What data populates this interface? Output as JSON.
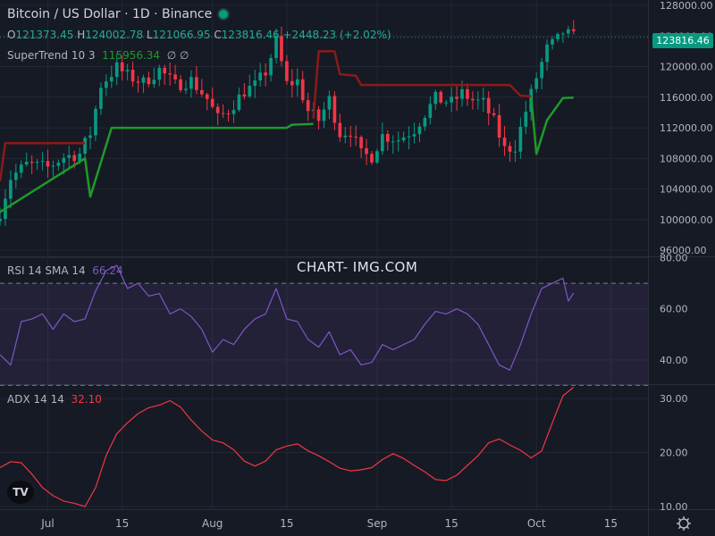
{
  "header": {
    "title": "Bitcoin / US Dollar · 1D · Binance",
    "ohlc": {
      "o_label": "O",
      "o": "121373.45",
      "h_label": "H",
      "h": "124002.78",
      "l_label": "L",
      "l": "121066.95",
      "c_label": "C",
      "c": "123816.46",
      "change": "+2448.23 (+2.02%)"
    }
  },
  "indicators": {
    "supertrend": {
      "label": "SuperTrend 10 3",
      "value": "115956.34",
      "extra": "∅  ∅"
    },
    "rsi": {
      "label": "RSI 14 SMA 14",
      "value": "66.24"
    },
    "adx": {
      "label": "ADX 14 14",
      "value": "32.10"
    }
  },
  "watermark": "CHART- IMG.COM",
  "price_tag": "123816.46",
  "logo_text": "TV",
  "colors": {
    "background": "#161a25",
    "up": "#089981",
    "down": "#f23645",
    "supertrend_up": "#1e9b2b",
    "supertrend_down": "#8b1a1a",
    "rsi": "#7e57c2",
    "adx": "#f23645"
  },
  "chart_data": [
    {
      "type": "candlestick",
      "title": "Bitcoin / US Dollar · 1D · Binance",
      "x_ticks": [
        {
          "label": "Jul",
          "date": "2025-07-01"
        },
        {
          "label": "15",
          "date": "2025-07-15"
        },
        {
          "label": "Aug",
          "date": "2025-08-01"
        },
        {
          "label": "15",
          "date": "2025-08-15"
        },
        {
          "label": "Sep",
          "date": "2025-09-01"
        },
        {
          "label": "15",
          "date": "2025-09-15"
        },
        {
          "label": "Oct",
          "date": "2025-10-01"
        },
        {
          "label": "15",
          "date": "2025-10-15"
        }
      ],
      "y_ticks": [
        {
          "label": "128000.00",
          "value": 128000
        },
        {
          "label": "124000.00",
          "value": 124000
        },
        {
          "label": "120000.00",
          "value": 120000
        },
        {
          "label": "116000.00",
          "value": 116000
        },
        {
          "label": "112000.00",
          "value": 112000
        },
        {
          "label": "108000.00",
          "value": 108000
        },
        {
          "label": "104000.00",
          "value": 104000
        },
        {
          "label": "100000.00",
          "value": 100000
        },
        {
          "label": "96000.00",
          "value": 96000
        }
      ],
      "ylim": [
        95200,
        128700
      ],
      "x_start": "2025-06-22",
      "x_end": "2025-10-22",
      "close_anchors": [
        [
          "2025-06-22",
          101000
        ],
        [
          "2025-06-24",
          105500
        ],
        [
          "2025-06-27",
          107200
        ],
        [
          "2025-07-01",
          106800
        ],
        [
          "2025-07-04",
          108200
        ],
        [
          "2025-07-07",
          108600
        ],
        [
          "2025-07-09",
          111300
        ],
        [
          "2025-07-11",
          117600
        ],
        [
          "2025-07-14",
          119900
        ],
        [
          "2025-07-16",
          118800
        ],
        [
          "2025-07-19",
          117900
        ],
        [
          "2025-07-22",
          119600
        ],
        [
          "2025-07-25",
          117600
        ],
        [
          "2025-07-28",
          118200
        ],
        [
          "2025-07-31",
          115800
        ],
        [
          "2025-08-02",
          113200
        ],
        [
          "2025-08-04",
          114300
        ],
        [
          "2025-08-07",
          116800
        ],
        [
          "2025-08-09",
          117500
        ],
        [
          "2025-08-11",
          119300
        ],
        [
          "2025-08-13",
          123300
        ],
        [
          "2025-08-15",
          117700
        ],
        [
          "2025-08-17",
          118100
        ],
        [
          "2025-08-19",
          114200
        ],
        [
          "2025-08-21",
          113000
        ],
        [
          "2025-08-23",
          115700
        ],
        [
          "2025-08-25",
          111300
        ],
        [
          "2025-08-27",
          111600
        ],
        [
          "2025-08-29",
          108500
        ],
        [
          "2025-08-31",
          108300
        ],
        [
          "2025-09-02",
          111000
        ],
        [
          "2025-09-05",
          110500
        ],
        [
          "2025-09-08",
          111800
        ],
        [
          "2025-09-10",
          113900
        ],
        [
          "2025-09-12",
          115800
        ],
        [
          "2025-09-15",
          115300
        ],
        [
          "2025-09-17",
          116500
        ],
        [
          "2025-09-19",
          115600
        ],
        [
          "2025-09-21",
          115200
        ],
        [
          "2025-09-23",
          112800
        ],
        [
          "2025-09-25",
          109200
        ],
        [
          "2025-09-27",
          109600
        ],
        [
          "2025-09-29",
          114200
        ],
        [
          "2025-10-01",
          118600
        ],
        [
          "2025-10-03",
          122300
        ],
        [
          "2025-10-05",
          123500
        ],
        [
          "2025-10-06",
          124500
        ],
        [
          "2025-10-08",
          123816
        ]
      ],
      "supertrend_down": [
        [
          "2025-06-22",
          105000
        ],
        [
          "2025-06-23",
          110000
        ],
        [
          "2025-07-08",
          110000
        ]
      ],
      "supertrend_up": [
        [
          "2025-06-22",
          101000
        ],
        [
          "2025-07-08",
          108000
        ],
        [
          "2025-07-09",
          103000
        ],
        [
          "2025-07-13",
          112000
        ],
        [
          "2025-08-15",
          112000
        ],
        [
          "2025-08-16",
          112400
        ],
        [
          "2025-08-20",
          112500
        ]
      ],
      "supertrend_down_2": [
        [
          "2025-08-20",
          113200
        ],
        [
          "2025-08-21",
          122000
        ],
        [
          "2025-08-24",
          122000
        ],
        [
          "2025-08-25",
          119000
        ],
        [
          "2025-08-28",
          118800
        ],
        [
          "2025-08-29",
          117600
        ],
        [
          "2025-09-26",
          117600
        ],
        [
          "2025-09-28",
          116200
        ],
        [
          "2025-09-30",
          116100
        ]
      ],
      "supertrend_up_2": [
        [
          "2025-09-30",
          116000
        ],
        [
          "2025-10-01",
          108600
        ],
        [
          "2025-10-03",
          113000
        ],
        [
          "2025-10-06",
          115900
        ],
        [
          "2025-10-08",
          115956
        ]
      ]
    },
    {
      "type": "line",
      "title": "RSI 14 SMA 14",
      "y_ticks": [
        {
          "label": "80.00",
          "value": 80
        },
        {
          "label": "60.00",
          "value": 60
        },
        {
          "label": "40.00",
          "value": 40
        }
      ],
      "ylim": [
        30.5,
        80.2
      ],
      "bands": [
        30,
        70
      ],
      "series": [
        {
          "name": "RSI",
          "points": [
            [
              "2025-06-22",
              42
            ],
            [
              "2025-06-24",
              38
            ],
            [
              "2025-06-26",
              55
            ],
            [
              "2025-06-28",
              56
            ],
            [
              "2025-06-30",
              58
            ],
            [
              "2025-07-02",
              52
            ],
            [
              "2025-07-04",
              58
            ],
            [
              "2025-07-06",
              55
            ],
            [
              "2025-07-08",
              56
            ],
            [
              "2025-07-10",
              67
            ],
            [
              "2025-07-12",
              75
            ],
            [
              "2025-07-14",
              77
            ],
            [
              "2025-07-16",
              68
            ],
            [
              "2025-07-18",
              70
            ],
            [
              "2025-07-20",
              65
            ],
            [
              "2025-07-22",
              66
            ],
            [
              "2025-07-24",
              58
            ],
            [
              "2025-07-26",
              60
            ],
            [
              "2025-07-28",
              57
            ],
            [
              "2025-07-30",
              52
            ],
            [
              "2025-08-01",
              43
            ],
            [
              "2025-08-03",
              48
            ],
            [
              "2025-08-05",
              46
            ],
            [
              "2025-08-07",
              52
            ],
            [
              "2025-08-09",
              56
            ],
            [
              "2025-08-11",
              58
            ],
            [
              "2025-08-13",
              68
            ],
            [
              "2025-08-15",
              56
            ],
            [
              "2025-08-17",
              55
            ],
            [
              "2025-08-19",
              48
            ],
            [
              "2025-08-21",
              45
            ],
            [
              "2025-08-23",
              51
            ],
            [
              "2025-08-25",
              42
            ],
            [
              "2025-08-27",
              44
            ],
            [
              "2025-08-29",
              38
            ],
            [
              "2025-08-31",
              39
            ],
            [
              "2025-09-02",
              46
            ],
            [
              "2025-09-04",
              44
            ],
            [
              "2025-09-06",
              46
            ],
            [
              "2025-09-08",
              48
            ],
            [
              "2025-09-10",
              54
            ],
            [
              "2025-09-12",
              59
            ],
            [
              "2025-09-14",
              58
            ],
            [
              "2025-09-16",
              60
            ],
            [
              "2025-09-18",
              58
            ],
            [
              "2025-09-20",
              54
            ],
            [
              "2025-09-22",
              46
            ],
            [
              "2025-09-24",
              38
            ],
            [
              "2025-09-26",
              36
            ],
            [
              "2025-09-28",
              46
            ],
            [
              "2025-09-30",
              58
            ],
            [
              "2025-10-02",
              68
            ],
            [
              "2025-10-04",
              70
            ],
            [
              "2025-10-06",
              72
            ],
            [
              "2025-10-07",
              63
            ],
            [
              "2025-10-08",
              66.24
            ]
          ]
        }
      ]
    },
    {
      "type": "line",
      "title": "ADX 14 14",
      "y_ticks": [
        {
          "label": "30.00",
          "value": 30
        },
        {
          "label": "20.00",
          "value": 20
        },
        {
          "label": "10.00",
          "value": 10
        }
      ],
      "ylim": [
        9.5,
        32.5
      ],
      "series": [
        {
          "name": "ADX",
          "points": [
            [
              "2025-06-22",
              17.2
            ],
            [
              "2025-06-24",
              18.3
            ],
            [
              "2025-06-26",
              18.1
            ],
            [
              "2025-06-28",
              16.0
            ],
            [
              "2025-06-30",
              13.5
            ],
            [
              "2025-07-02",
              12.0
            ],
            [
              "2025-07-04",
              11.0
            ],
            [
              "2025-07-06",
              10.6
            ],
            [
              "2025-07-08",
              10.0
            ],
            [
              "2025-07-10",
              13.5
            ],
            [
              "2025-07-12",
              19.5
            ],
            [
              "2025-07-14",
              23.5
            ],
            [
              "2025-07-16",
              25.5
            ],
            [
              "2025-07-18",
              27.2
            ],
            [
              "2025-07-20",
              28.3
            ],
            [
              "2025-07-22",
              28.8
            ],
            [
              "2025-07-24",
              29.6
            ],
            [
              "2025-07-26",
              28.4
            ],
            [
              "2025-07-28",
              26.0
            ],
            [
              "2025-07-30",
              24.0
            ],
            [
              "2025-08-01",
              22.3
            ],
            [
              "2025-08-03",
              21.8
            ],
            [
              "2025-08-05",
              20.5
            ],
            [
              "2025-08-07",
              18.4
            ],
            [
              "2025-08-09",
              17.5
            ],
            [
              "2025-08-11",
              18.4
            ],
            [
              "2025-08-13",
              20.5
            ],
            [
              "2025-08-15",
              21.2
            ],
            [
              "2025-08-17",
              21.6
            ],
            [
              "2025-08-19",
              20.3
            ],
            [
              "2025-08-21",
              19.4
            ],
            [
              "2025-08-23",
              18.3
            ],
            [
              "2025-08-25",
              17.1
            ],
            [
              "2025-08-27",
              16.6
            ],
            [
              "2025-08-29",
              16.8
            ],
            [
              "2025-08-31",
              17.2
            ],
            [
              "2025-09-02",
              18.7
            ],
            [
              "2025-09-04",
              19.8
            ],
            [
              "2025-09-06",
              18.9
            ],
            [
              "2025-09-08",
              17.6
            ],
            [
              "2025-09-10",
              16.4
            ],
            [
              "2025-09-12",
              15.0
            ],
            [
              "2025-09-14",
              14.8
            ],
            [
              "2025-09-16",
              15.8
            ],
            [
              "2025-09-18",
              17.6
            ],
            [
              "2025-09-20",
              19.4
            ],
            [
              "2025-09-22",
              21.8
            ],
            [
              "2025-09-24",
              22.5
            ],
            [
              "2025-09-26",
              21.4
            ],
            [
              "2025-09-28",
              20.4
            ],
            [
              "2025-09-30",
              19.0
            ],
            [
              "2025-10-02",
              20.3
            ],
            [
              "2025-10-04",
              25.5
            ],
            [
              "2025-10-06",
              30.5
            ],
            [
              "2025-10-08",
              32.1
            ]
          ]
        }
      ]
    }
  ]
}
